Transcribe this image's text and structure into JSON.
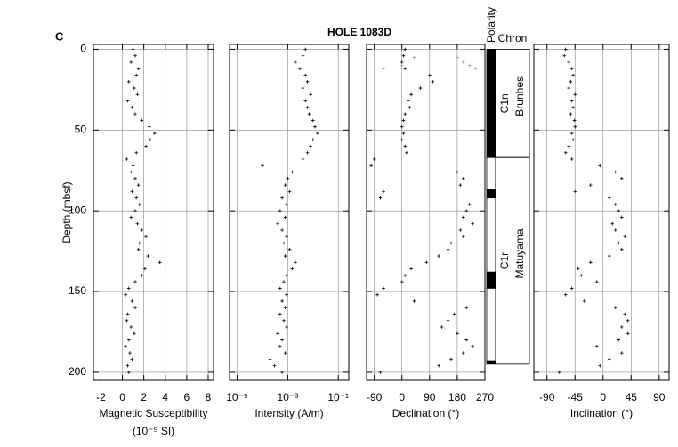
{
  "title": "HOLE 1083D",
  "panel_label": "C",
  "chart_data": [
    {
      "type": "scatter",
      "ylabel": "Depth (mbsf)",
      "ylim": [
        205,
        -3
      ],
      "yticks": [
        0,
        50,
        100,
        150,
        200
      ],
      "xlabel": [
        "Magnetic Susceptibility",
        "(10⁻⁵ SI)"
      ],
      "xlim": [
        -2.7,
        8.5
      ],
      "xticks": [
        -2,
        0,
        2,
        4,
        6,
        8
      ],
      "grid": true,
      "series": [
        {
          "color": "#000000",
          "x": [
            1,
            1.2,
            0.8,
            1.5,
            1.3,
            0.6,
            1.1,
            1.4,
            0.5,
            0.9,
            1.2,
            1.8,
            2.5,
            3,
            2.6,
            2.2,
            1.3,
            0.4,
            1,
            0.8,
            1.2,
            1.5,
            0.9,
            1.3,
            1.6,
            1.2,
            0.8,
            1.4,
            1.8,
            2.2,
            1.6,
            1.5,
            2.4,
            3.5,
            2.1,
            1.8,
            1.2,
            0.6,
            0.3,
            0.9,
            1.2,
            0.5,
            0.4,
            0.8,
            1.1,
            0.6,
            0.3,
            0.7,
            0.9,
            0.5,
            0.6
          ],
          "values": [
            0,
            4,
            8,
            12,
            16,
            20,
            24,
            28,
            32,
            36,
            40,
            44,
            48,
            52,
            56,
            60,
            64,
            68,
            72,
            76,
            80,
            84,
            88,
            92,
            96,
            100,
            104,
            108,
            112,
            116,
            120,
            124,
            128,
            132,
            136,
            140,
            144,
            148,
            152,
            156,
            160,
            164,
            168,
            172,
            176,
            180,
            184,
            188,
            192,
            196,
            200
          ]
        }
      ]
    },
    {
      "type": "scatter",
      "log": true,
      "ylim": [
        205,
        -3
      ],
      "xlabel": [
        "Intensity (A/m)"
      ],
      "xlim": [
        5e-06,
        0.26
      ],
      "xticks": [
        {
          "value": 1e-05,
          "label": "10⁻⁵"
        },
        {
          "value": 0.001,
          "label": "10⁻³"
        },
        {
          "value": 0.1,
          "label": "10⁻¹"
        }
      ],
      "grid": true,
      "series": [
        {
          "color": "#000000",
          "x": [
            0.005,
            0.004,
            0.002,
            0.003,
            0.005,
            0.006,
            0.004,
            0.008,
            0.005,
            0.006,
            0.007,
            0.01,
            0.012,
            0.015,
            0.01,
            0.008,
            0.006,
            0.004,
            0.0001,
            0.0015,
            0.001,
            0.0008,
            0.0012,
            0.0006,
            0.0009,
            0.0005,
            0.0008,
            0.0004,
            0.0006,
            0.0009,
            0.0007,
            0.0012,
            0.0008,
            0.002,
            0.0015,
            0.0009,
            0.0007,
            0.0005,
            0.0009,
            0.0006,
            0.0008,
            0.0005,
            0.0007,
            0.0009,
            0.0004,
            0.0006,
            0.0005,
            0.0008,
            0.0002,
            0.0003,
            0.0006
          ],
          "values": [
            0,
            4,
            8,
            12,
            16,
            20,
            24,
            28,
            32,
            36,
            40,
            44,
            48,
            52,
            56,
            60,
            64,
            68,
            72,
            76,
            80,
            84,
            88,
            92,
            96,
            100,
            104,
            108,
            112,
            116,
            120,
            124,
            128,
            132,
            136,
            140,
            144,
            148,
            152,
            156,
            160,
            164,
            168,
            172,
            176,
            180,
            184,
            188,
            192,
            196,
            200
          ]
        }
      ]
    },
    {
      "type": "scatter",
      "ylim": [
        205,
        -3
      ],
      "xlabel": [
        "Declination (°)"
      ],
      "xlim": [
        -115,
        270
      ],
      "xticks": [
        -90,
        0,
        90,
        180,
        270
      ],
      "grid": true,
      "series": [
        {
          "color": "#000000",
          "x": [
            10,
            5,
            0,
            10,
            90,
            100,
            60,
            30,
            20,
            25,
            10,
            5,
            0,
            5,
            0,
            10,
            15,
            -90,
            -100,
            180,
            200,
            190,
            -60,
            -70,
            220,
            210,
            200,
            230,
            190,
            200,
            160,
            150,
            120,
            80,
            30,
            10,
            0,
            -60,
            -80,
            40,
            210,
            170,
            150,
            130,
            180,
            210,
            230,
            200,
            160,
            120,
            -70
          ],
          "values": [
            0,
            4,
            8,
            12,
            16,
            20,
            24,
            28,
            32,
            36,
            40,
            44,
            48,
            52,
            56,
            60,
            64,
            68,
            72,
            76,
            80,
            84,
            88,
            92,
            96,
            100,
            104,
            108,
            112,
            116,
            120,
            124,
            128,
            132,
            136,
            140,
            144,
            148,
            152,
            156,
            160,
            164,
            168,
            172,
            176,
            180,
            184,
            188,
            192,
            196,
            200
          ]
        },
        {
          "color": "#999999",
          "x": [
            0,
            40,
            -60,
            200,
            220,
            240,
            180
          ],
          "values": [
            10,
            5,
            12,
            8,
            10,
            12,
            5
          ]
        }
      ]
    },
    {
      "type": "polarity",
      "title": "Polarity",
      "intervals": [
        {
          "top": 0,
          "bottom": 67,
          "color": "#000000"
        },
        {
          "top": 67,
          "bottom": 87,
          "color": "#ffffff"
        },
        {
          "top": 87,
          "bottom": 92,
          "color": "#000000"
        },
        {
          "top": 92,
          "bottom": 138,
          "color": "#ffffff"
        },
        {
          "top": 138,
          "bottom": 148,
          "color": "#000000"
        },
        {
          "top": 148,
          "bottom": 193,
          "color": "#ffffff"
        },
        {
          "top": 193,
          "bottom": 195,
          "color": "#000000"
        }
      ]
    },
    {
      "type": "chron",
      "title": "Chron",
      "chrons": [
        {
          "top": 0,
          "bottom": 67,
          "name": "C1n",
          "epoch": "Brunhes"
        },
        {
          "top": 67,
          "bottom": 195,
          "name": "C1r",
          "epoch": "Matuyama"
        }
      ]
    },
    {
      "type": "scatter",
      "ylim": [
        205,
        -3
      ],
      "xlabel": [
        "Inclination (°)"
      ],
      "xlim": [
        -111,
        106
      ],
      "xticks": [
        -90,
        -45,
        0,
        45,
        90
      ],
      "grid": true,
      "series": [
        {
          "color": "#000000",
          "x": [
            -60,
            -62,
            -55,
            -50,
            -48,
            -52,
            -55,
            -45,
            -50,
            -48,
            -52,
            -46,
            -45,
            -50,
            -48,
            -55,
            -60,
            -50,
            -5,
            20,
            30,
            -20,
            -45,
            10,
            20,
            25,
            30,
            15,
            20,
            35,
            25,
            30,
            10,
            -20,
            -40,
            -35,
            -10,
            -50,
            -60,
            -30,
            20,
            35,
            40,
            30,
            40,
            25,
            -10,
            30,
            10,
            -5,
            -70
          ],
          "values": [
            0,
            4,
            8,
            12,
            16,
            20,
            24,
            28,
            32,
            36,
            40,
            44,
            48,
            52,
            56,
            60,
            64,
            68,
            72,
            76,
            80,
            84,
            88,
            92,
            96,
            100,
            104,
            108,
            112,
            116,
            120,
            124,
            128,
            132,
            136,
            140,
            144,
            148,
            152,
            156,
            160,
            164,
            168,
            172,
            176,
            180,
            184,
            188,
            192,
            196,
            200
          ]
        }
      ]
    }
  ]
}
